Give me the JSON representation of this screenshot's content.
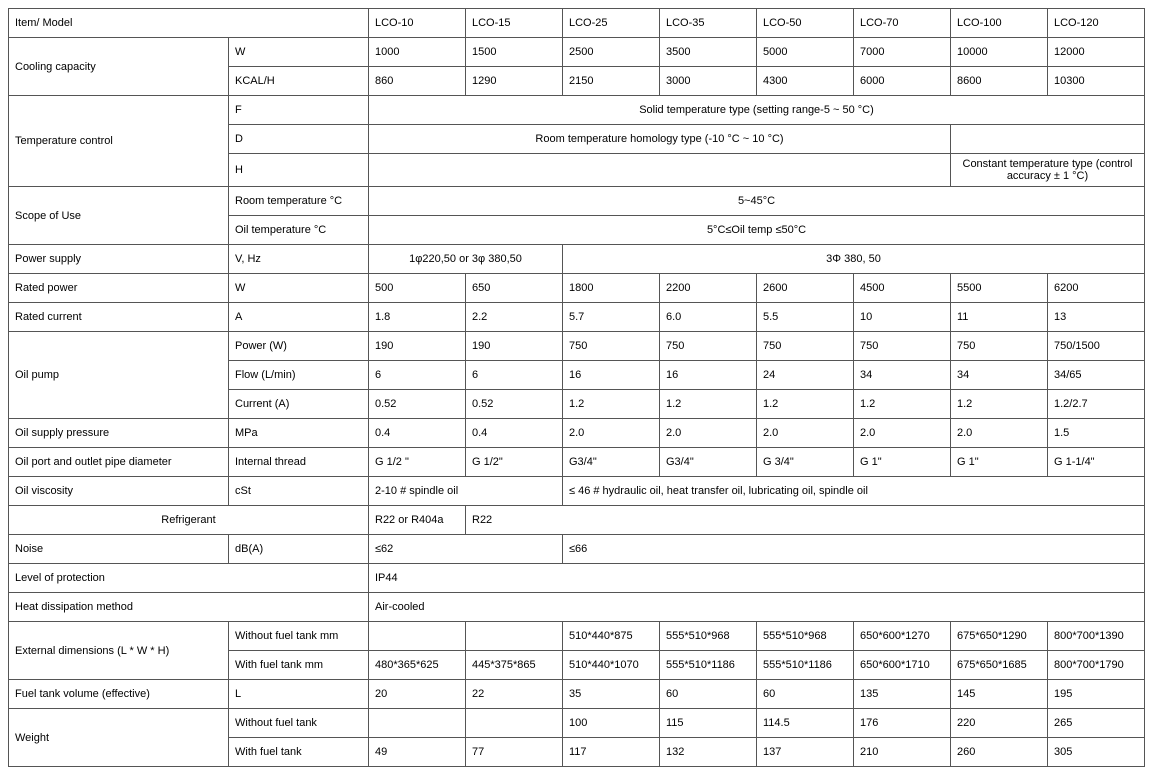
{
  "columns": [
    "LCO-10",
    "LCO-15",
    "LCO-25",
    "LCO-35",
    "LCO-50",
    "LCO-70",
    "LCO-100",
    "LCO-120"
  ],
  "header": {
    "item": "Item/ Model"
  },
  "rows": {
    "cooling": {
      "label": "Cooling capacity",
      "w": {
        "unit": "W",
        "v": [
          "1000",
          "1500",
          "2500",
          "3500",
          "5000",
          "7000",
          "10000",
          "12000"
        ]
      },
      "kcal": {
        "unit": "KCAL/H",
        "v": [
          "860",
          "1290",
          "2150",
          "3000",
          "4300",
          "6000",
          "8600",
          "10300"
        ]
      }
    },
    "temp_control": {
      "label": "Temperature control",
      "f": {
        "unit": "F",
        "text": "Solid temperature type (setting range-5 ~ 50 °C)"
      },
      "d": {
        "unit": "D",
        "text": "Room temperature homology type (-10 °C ~ 10 °C)"
      },
      "h": {
        "unit": "H",
        "text": "Constant temperature type (control accuracy ± 1 °C)"
      }
    },
    "scope": {
      "label": "Scope of Use",
      "room": {
        "unit": "Room temperature °C",
        "text": "5~45°C"
      },
      "oil": {
        "unit": "Oil temperature °C",
        "text": "5°C≤Oil temp ≤50°C"
      }
    },
    "power_supply": {
      "label": "Power supply",
      "unit": "V, Hz",
      "a": "1φ220,50 or 3φ 380,50",
      "b": "3Φ      380, 50"
    },
    "rated_power": {
      "label": "Rated power",
      "unit": "W",
      "v": [
        "500",
        "650",
        "1800",
        "2200",
        "2600",
        "4500",
        "5500",
        "6200"
      ]
    },
    "rated_current": {
      "label": "Rated current",
      "unit": "A",
      "v": [
        "1.8",
        "2.2",
        "5.7",
        "6.0",
        "5.5",
        "10",
        "11",
        "13"
      ]
    },
    "oil_pump": {
      "label": "Oil pump",
      "power": {
        "unit": "Power (W)",
        "v": [
          "190",
          "190",
          "750",
          "750",
          "750",
          "750",
          "750",
          "750/1500"
        ]
      },
      "flow": {
        "unit": "Flow (L/min)",
        "v": [
          "6",
          "6",
          "16",
          "16",
          "24",
          "34",
          "34",
          "34/65"
        ]
      },
      "current": {
        "unit": "Current (A)",
        "v": [
          "0.52",
          "0.52",
          "1.2",
          "1.2",
          "1.2",
          "1.2",
          "1.2",
          "1.2/2.7"
        ]
      }
    },
    "oil_pressure": {
      "label": "Oil supply pressure",
      "unit": "MPa",
      "v": [
        "0.4",
        "0.4",
        "2.0",
        "2.0",
        "2.0",
        "2.0",
        "2.0",
        "1.5"
      ]
    },
    "oil_port": {
      "label": "Oil port and outlet pipe diameter",
      "unit": "Internal thread",
      "v": [
        "G  1/2 \"",
        "G   1/2\"",
        "G3/4\"",
        "G3/4\"",
        "G  3/4\"",
        "G  1\"",
        "G  1\"",
        "G  1-1/4\""
      ]
    },
    "oil_viscosity": {
      "label": "Oil viscosity",
      "unit": "cSt",
      "a": "2-10 # spindle oil",
      "b": "≤ 46 # hydraulic oil, heat transfer oil, lubricating oil, spindle oil"
    },
    "refrigerant": {
      "label": "Refrigerant",
      "a": "R22 or R404a",
      "b": "R22"
    },
    "noise": {
      "label": "Noise",
      "unit": "dB(A)",
      "a": "≤62",
      "b": "≤66"
    },
    "protection": {
      "label": "Level of protection",
      "text": "IP44"
    },
    "heat_dissipation": {
      "label": "Heat dissipation method",
      "text": "Air-cooled"
    },
    "dimensions": {
      "label": "External dimensions (L * W * H)",
      "without": {
        "unit": "Without fuel tank mm",
        "v": [
          "",
          "",
          "510*440*875",
          "555*510*968",
          "555*510*968",
          "650*600*1270",
          "675*650*1290",
          "800*700*1390"
        ]
      },
      "with": {
        "unit": "With fuel tank mm",
        "v": [
          "480*365*625",
          "445*375*865",
          "510*440*1070",
          "555*510*1186",
          "555*510*1186",
          "650*600*1710",
          "675*650*1685",
          "800*700*1790"
        ]
      }
    },
    "fuel_tank": {
      "label": "Fuel tank volume (effective)",
      "unit": "L",
      "v": [
        "20",
        "22",
        "35",
        "60",
        "60",
        "135",
        "145",
        "195"
      ]
    },
    "weight": {
      "label": "Weight",
      "without": {
        "unit": "Without fuel tank",
        "v": [
          "",
          "",
          "100",
          "115",
          "114.5",
          "176",
          "220",
          "265"
        ]
      },
      "with": {
        "unit": "With fuel tank",
        "v": [
          "49",
          "77",
          "117",
          "132",
          "137",
          "210",
          "260",
          "305"
        ]
      }
    }
  }
}
